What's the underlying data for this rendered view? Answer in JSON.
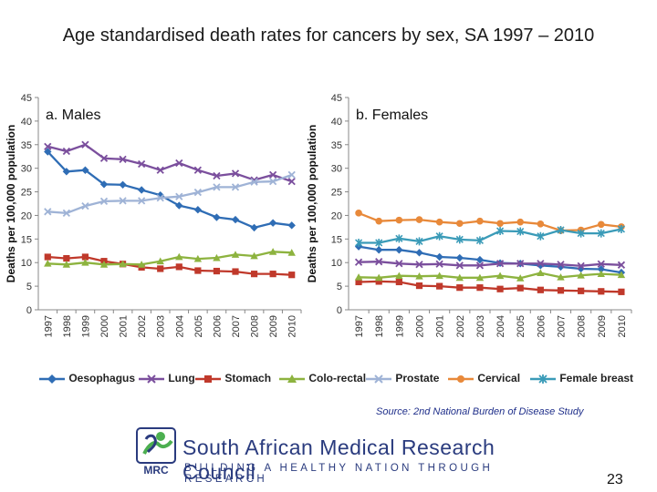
{
  "title": "Age standardised death rates for cancers by sex, SA 1997 – 2010",
  "chart_data": [
    {
      "type": "line",
      "panel_label": "a. Males",
      "ylabel": "Deaths per 100,000 population",
      "xlabel": "",
      "ylim": [
        0,
        45
      ],
      "yticks": [
        0,
        5,
        10,
        15,
        20,
        25,
        30,
        35,
        40,
        45
      ],
      "categories": [
        "1997",
        "1998",
        "1999",
        "2000",
        "2001",
        "2002",
        "2003",
        "2004",
        "2005",
        "2006",
        "2007",
        "2008",
        "2009",
        "2010"
      ],
      "series": [
        {
          "name": "Oesophagus",
          "color": "#2f6db5",
          "marker": "diamond",
          "values": [
            33.5,
            29.3,
            29.6,
            26.6,
            26.5,
            25.4,
            24.3,
            22.1,
            21.2,
            19.6,
            19.1,
            17.4,
            18.4,
            17.9
          ]
        },
        {
          "name": "Lung",
          "color": "#7b4f9d",
          "marker": "x",
          "values": [
            34.6,
            33.6,
            35.0,
            32.1,
            31.9,
            30.9,
            29.6,
            31.1,
            29.6,
            28.4,
            28.9,
            27.5,
            28.6,
            27.2
          ]
        },
        {
          "name": "Stomach",
          "color": "#c0392b",
          "marker": "square",
          "values": [
            11.2,
            10.9,
            11.2,
            10.3,
            9.7,
            9.0,
            8.7,
            9.1,
            8.3,
            8.2,
            8.1,
            7.6,
            7.6,
            7.4
          ]
        },
        {
          "name": "Colo-rectal",
          "color": "#8db33f",
          "marker": "triangle",
          "values": [
            9.8,
            9.6,
            10.0,
            9.6,
            9.7,
            9.6,
            10.3,
            11.2,
            10.8,
            11.0,
            11.7,
            11.4,
            12.3,
            12.1
          ]
        },
        {
          "name": "Prostate",
          "color": "#9fb3d6",
          "marker": "x",
          "values": [
            20.8,
            20.5,
            22.0,
            23.0,
            23.1,
            23.1,
            23.7,
            24.0,
            24.9,
            26.0,
            26.0,
            27.1,
            27.2,
            28.6
          ]
        }
      ]
    },
    {
      "type": "line",
      "panel_label": "b. Females",
      "ylabel": "Deaths per 100,000 population",
      "xlabel": "",
      "ylim": [
        0,
        45
      ],
      "yticks": [
        0,
        5,
        10,
        15,
        20,
        25,
        30,
        35,
        40,
        45
      ],
      "categories": [
        "1997",
        "1998",
        "1999",
        "2000",
        "2001",
        "2002",
        "2003",
        "2004",
        "2005",
        "2006",
        "2007",
        "2008",
        "2009",
        "2010"
      ],
      "series": [
        {
          "name": "Oesophagus",
          "color": "#2f6db5",
          "marker": "diamond",
          "values": [
            13.4,
            12.7,
            12.7,
            12.1,
            11.2,
            11.0,
            10.6,
            9.9,
            9.8,
            9.4,
            9.1,
            8.7,
            8.6,
            7.9
          ]
        },
        {
          "name": "Lung",
          "color": "#7b4f9d",
          "marker": "x",
          "values": [
            10.1,
            10.2,
            9.8,
            9.6,
            9.7,
            9.4,
            9.4,
            9.8,
            9.8,
            9.8,
            9.6,
            9.3,
            9.7,
            9.5
          ]
        },
        {
          "name": "Stomach",
          "color": "#c0392b",
          "marker": "square",
          "values": [
            5.9,
            6.0,
            5.9,
            5.1,
            5.0,
            4.7,
            4.7,
            4.4,
            4.6,
            4.2,
            4.1,
            4.0,
            3.9,
            3.8
          ]
        },
        {
          "name": "Colo-rectal",
          "color": "#8db33f",
          "marker": "triangle",
          "values": [
            6.9,
            6.8,
            7.2,
            7.1,
            7.2,
            6.8,
            6.8,
            7.2,
            6.7,
            7.8,
            6.9,
            7.3,
            7.6,
            7.4
          ]
        },
        {
          "name": "Cervical",
          "color": "#e8893a",
          "marker": "circle",
          "values": [
            20.5,
            18.8,
            19.0,
            19.1,
            18.6,
            18.3,
            18.8,
            18.3,
            18.6,
            18.2,
            16.8,
            16.9,
            18.1,
            17.6
          ]
        },
        {
          "name": "Female breast",
          "color": "#3a9bb8",
          "marker": "star",
          "values": [
            14.2,
            14.2,
            15.1,
            14.5,
            15.6,
            14.9,
            14.7,
            16.7,
            16.6,
            15.6,
            16.9,
            16.2,
            16.2,
            17.1
          ]
        }
      ]
    }
  ],
  "legend": [
    {
      "name": "Oesophagus",
      "color": "#2f6db5",
      "marker": "diamond"
    },
    {
      "name": "Lung",
      "color": "#7b4f9d",
      "marker": "x"
    },
    {
      "name": "Stomach",
      "color": "#c0392b",
      "marker": "square"
    },
    {
      "name": "Colo-rectal",
      "color": "#8db33f",
      "marker": "triangle"
    },
    {
      "name": "Prostate",
      "color": "#9fb3d6",
      "marker": "x"
    },
    {
      "name": "Cervical",
      "color": "#e8893a",
      "marker": "circle"
    },
    {
      "name": "Female breast",
      "color": "#3a9bb8",
      "marker": "star"
    }
  ],
  "source": "Source: 2nd National Burden of Disease Study",
  "logo": {
    "org_name": "South African Medical Research Council",
    "tagline": "BUILDING A HEALTHY NATION THROUGH RESEARCH",
    "mark_text": "MRC",
    "brand_blue": "#2a3b7e",
    "brand_green": "#4caf50"
  },
  "page_number": "23"
}
